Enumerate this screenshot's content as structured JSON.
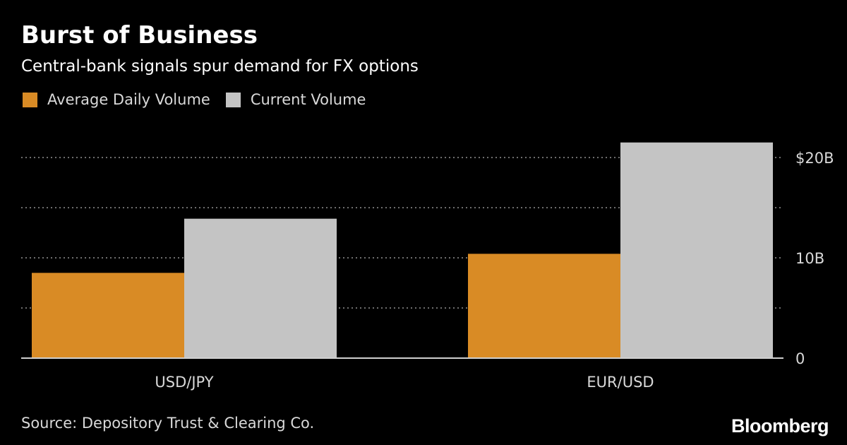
{
  "header": {
    "title": "Burst of Business",
    "subtitle": "Central-bank signals spur demand for FX options"
  },
  "footer": {
    "source": "Source: Depository Trust & Clearing Co.",
    "logo": "Bloomberg"
  },
  "colors": {
    "background": "#000000",
    "average_daily_volume": "#d98b25",
    "current_volume": "#c4c4c4",
    "grid": "#6e6e6e",
    "text": "#d9d9d9"
  },
  "chart_data": {
    "type": "bar",
    "title": "Burst of Business",
    "subtitle": "Central-bank signals spur demand for FX options",
    "categories": [
      "USD/JPY",
      "EUR/USD"
    ],
    "series": [
      {
        "name": "Average Daily Volume",
        "values": [
          8.5,
          10.4
        ]
      },
      {
        "name": "Current Volume",
        "values": [
          13.9,
          21.5
        ]
      }
    ],
    "xlabel": "",
    "ylabel": "",
    "ylim": [
      0,
      20
    ],
    "yticks": [
      0,
      5,
      10,
      15,
      20
    ],
    "ytick_labels": [
      "0",
      "",
      "10B",
      "",
      "$20B"
    ],
    "grid": true,
    "grid_style": "dotted",
    "y_axis_position": "right",
    "legend": "top-left"
  }
}
